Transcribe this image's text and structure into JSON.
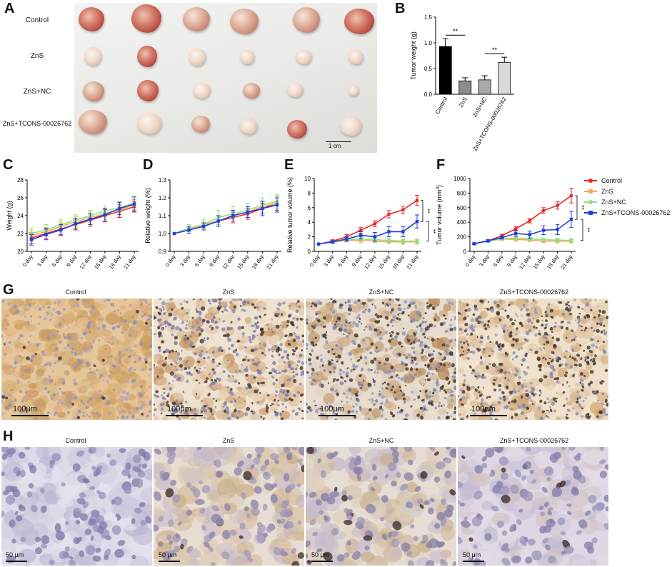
{
  "panels": {
    "A": "A",
    "B": "B",
    "C": "C",
    "D": "D",
    "E": "E",
    "F": "F",
    "G": "G",
    "H": "H"
  },
  "photo": {
    "rows": [
      "Control",
      "ZnS",
      "ZnS+NC",
      "ZnS+TCONS-00026762"
    ],
    "scale_label": "1 cm"
  },
  "colors": {
    "Control": "#e8262a",
    "ZnS": "#f5a95b",
    "ZnS+NC": "#8ee37a",
    "ZnS+TCONS-00026762": "#1f3fdc"
  },
  "legend": [
    "Control",
    "ZnS",
    "ZnS+NC",
    "ZnS+TCONS-00026762"
  ],
  "significance": "**",
  "ihc_G": {
    "titles": [
      "Control",
      "ZnS",
      "ZnS+NC",
      "ZnS+TCONS-00026762"
    ],
    "scale": "100μm"
  },
  "ihc_H": {
    "titles": [
      "Control",
      "ZnS",
      "ZnS+NC",
      "ZnS+TCONS-00026762"
    ],
    "scale": "50 μm"
  },
  "chart_data": [
    {
      "id": "B",
      "type": "bar",
      "title": "",
      "xlabel": "",
      "ylabel": "Tumor weight (g)",
      "categories": [
        "Control",
        "ZnS",
        "ZnS+NC",
        "ZnS+TCONS-00026762"
      ],
      "values": [
        0.93,
        0.26,
        0.28,
        0.62
      ],
      "errors": [
        0.15,
        0.06,
        0.08,
        0.1
      ],
      "bar_colors": [
        "#000000",
        "#8c8c8c",
        "#a9a9a9",
        "#d9d9d9"
      ],
      "ylim": [
        0,
        1.5
      ],
      "yticks": [
        "0.0",
        "0.5",
        "1.0",
        "1.5"
      ],
      "annotations": [
        {
          "from": 0,
          "to": 1,
          "label": "**"
        },
        {
          "from": 2,
          "to": 3,
          "label": "**"
        }
      ]
    },
    {
      "id": "C",
      "type": "line",
      "title": "",
      "xlabel": "",
      "ylabel": "Weight (g)",
      "x": [
        "0 day",
        "3 day",
        "6 day",
        "9 day",
        "12 day",
        "15 day",
        "18 day",
        "21 day"
      ],
      "ylim": [
        20,
        28
      ],
      "yticks": [
        "20",
        "22",
        "24",
        "26",
        "28"
      ],
      "series": [
        {
          "name": "Control",
          "values": [
            21.5,
            22.0,
            22.5,
            23.0,
            23.5,
            24.0,
            24.5,
            25.0
          ],
          "err": [
            0.6,
            0.6,
            0.6,
            0.6,
            0.7,
            0.7,
            0.7,
            0.6
          ]
        },
        {
          "name": "ZnS",
          "values": [
            21.8,
            22.2,
            22.8,
            23.3,
            23.8,
            24.2,
            24.7,
            25.2
          ],
          "err": [
            0.5,
            0.5,
            0.5,
            0.6,
            0.6,
            0.6,
            0.6,
            0.6
          ]
        },
        {
          "name": "ZnS+NC",
          "values": [
            22.0,
            22.4,
            23.0,
            23.5,
            24.0,
            24.5,
            24.9,
            25.4
          ],
          "err": [
            0.6,
            0.6,
            0.6,
            0.6,
            0.6,
            0.6,
            0.7,
            0.7
          ]
        },
        {
          "name": "ZnS+TCONS-00026762",
          "values": [
            21.3,
            21.9,
            22.4,
            23.1,
            23.6,
            24.1,
            24.8,
            25.3
          ],
          "err": [
            0.6,
            0.6,
            0.6,
            0.6,
            0.6,
            0.7,
            0.7,
            0.8
          ]
        }
      ]
    },
    {
      "id": "D",
      "type": "line",
      "title": "",
      "xlabel": "",
      "ylabel": "Relative weight (%)",
      "x": [
        "0 day",
        "3 day",
        "6 day",
        "9 day",
        "12 day",
        "15 day",
        "18 day",
        "21 day"
      ],
      "ylim": [
        0.9,
        1.3
      ],
      "yticks": [
        "0.9",
        "1.0",
        "1.1",
        "1.2",
        "1.3"
      ],
      "series": [
        {
          "name": "Control",
          "values": [
            1.0,
            1.02,
            1.04,
            1.07,
            1.09,
            1.11,
            1.14,
            1.17
          ],
          "err": [
            0.0,
            0.02,
            0.02,
            0.03,
            0.03,
            0.03,
            0.03,
            0.04
          ]
        },
        {
          "name": "ZnS",
          "values": [
            1.0,
            1.02,
            1.05,
            1.07,
            1.1,
            1.12,
            1.15,
            1.17
          ],
          "err": [
            0.0,
            0.02,
            0.02,
            0.03,
            0.03,
            0.03,
            0.03,
            0.03
          ]
        },
        {
          "name": "ZnS+NC",
          "values": [
            1.0,
            1.03,
            1.05,
            1.09,
            1.11,
            1.13,
            1.16,
            1.18
          ],
          "err": [
            0.0,
            0.02,
            0.03,
            0.04,
            0.04,
            0.04,
            0.04,
            0.04
          ]
        },
        {
          "name": "ZnS+TCONS-00026762",
          "values": [
            1.0,
            1.02,
            1.04,
            1.07,
            1.1,
            1.12,
            1.14,
            1.16
          ],
          "err": [
            0.0,
            0.02,
            0.02,
            0.03,
            0.03,
            0.03,
            0.04,
            0.04
          ]
        }
      ]
    },
    {
      "id": "E",
      "type": "line",
      "title": "",
      "xlabel": "",
      "ylabel": "Relative tumor volume (%)",
      "x": [
        "0 day",
        "3 day",
        "6 day",
        "9 day",
        "12 day",
        "15 day",
        "18 day",
        "21 day"
      ],
      "ylim": [
        0,
        10
      ],
      "yticks": [
        "0",
        "2",
        "4",
        "6",
        "8",
        "10"
      ],
      "series": [
        {
          "name": "Control",
          "values": [
            1.0,
            1.4,
            2.0,
            2.9,
            3.8,
            5.1,
            5.7,
            7.0
          ],
          "err": [
            0.0,
            0.2,
            0.3,
            0.4,
            0.4,
            0.5,
            0.5,
            0.7
          ]
        },
        {
          "name": "ZnS",
          "values": [
            1.0,
            1.3,
            1.5,
            1.5,
            1.4,
            1.3,
            1.3,
            1.3
          ],
          "err": [
            0.0,
            0.2,
            0.2,
            0.3,
            0.2,
            0.2,
            0.3,
            0.3
          ]
        },
        {
          "name": "ZnS+NC",
          "values": [
            1.0,
            1.3,
            1.6,
            1.7,
            1.6,
            1.5,
            1.4,
            1.4
          ],
          "err": [
            0.0,
            0.2,
            0.2,
            0.3,
            0.3,
            0.3,
            0.3,
            0.3
          ]
        },
        {
          "name": "ZnS+TCONS-00026762",
          "values": [
            1.0,
            1.3,
            1.7,
            2.2,
            2.0,
            2.7,
            2.7,
            4.1
          ],
          "err": [
            0.0,
            0.2,
            0.3,
            0.5,
            0.6,
            0.7,
            0.7,
            0.9
          ]
        }
      ],
      "annotations": [
        {
          "between": [
            "Control",
            "ZnS+TCONS-00026762"
          ],
          "label": "**"
        },
        {
          "between": [
            "ZnS+NC",
            "ZnS+TCONS-00026762"
          ],
          "label": "**"
        }
      ]
    },
    {
      "id": "F",
      "type": "line",
      "title": "",
      "xlabel": "",
      "ylabel": "Tumor volume (mm",
      "ylabel_sup": "3",
      "ylabel_end": ")",
      "x": [
        "0 day",
        "3 day",
        "6 day",
        "9 day",
        "12 day",
        "15 day",
        "18 day",
        "21 day"
      ],
      "ylim": [
        0,
        1000
      ],
      "yticks": [
        "0",
        "200",
        "400",
        "600",
        "800",
        "1000"
      ],
      "series": [
        {
          "name": "Control",
          "values": [
            105,
            145,
            215,
            310,
            420,
            560,
            630,
            765
          ],
          "err": [
            10,
            15,
            20,
            30,
            30,
            40,
            50,
            100
          ]
        },
        {
          "name": "ZnS",
          "values": [
            105,
            140,
            170,
            165,
            155,
            140,
            140,
            140
          ],
          "err": [
            10,
            15,
            20,
            25,
            20,
            20,
            25,
            25
          ]
        },
        {
          "name": "ZnS+NC",
          "values": [
            105,
            140,
            175,
            180,
            170,
            160,
            155,
            150
          ],
          "err": [
            10,
            15,
            20,
            25,
            25,
            25,
            25,
            25
          ]
        },
        {
          "name": "ZnS+TCONS-00026762",
          "values": [
            105,
            145,
            190,
            245,
            230,
            290,
            300,
            440
          ],
          "err": [
            10,
            15,
            20,
            40,
            50,
            60,
            70,
            110
          ]
        }
      ],
      "annotations": [
        {
          "between": [
            "Control",
            "ZnS+TCONS-00026762"
          ],
          "label": "**"
        },
        {
          "between": [
            "ZnS+NC",
            "ZnS+TCONS-00026762"
          ],
          "label": "**"
        }
      ]
    }
  ]
}
